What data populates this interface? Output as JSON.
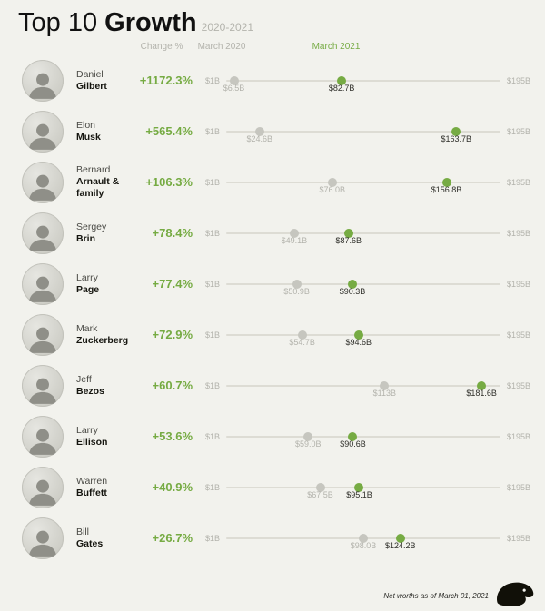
{
  "header": {
    "title_light": "Top 10 ",
    "title_bold": "Growth",
    "subtitle": "2020-2021"
  },
  "column_headers": {
    "change": "Change %",
    "start": "March 2020",
    "end": "March 2021"
  },
  "axis": {
    "min": 1,
    "max": 195,
    "min_label": "$1B",
    "max_label": "$195B"
  },
  "footer": {
    "note": "Net worths as of March 01, 2021",
    "logo": "blackbird-logo"
  },
  "colors": {
    "accent_green": "#76ab43",
    "gray_dot": "#c6c6bf",
    "muted_text": "#b3b3ac",
    "background": "#f2f2ed"
  },
  "chart_data": {
    "type": "dumbbell",
    "title": "Top 10 Growth 2020-2021",
    "x_axis": {
      "min": 1,
      "max": 195,
      "unit": "USD billions",
      "min_label": "$1B",
      "max_label": "$195B"
    },
    "series_labels": {
      "start": "March 2020",
      "end": "March 2021"
    },
    "legend_position": "top",
    "rows": [
      {
        "name_top": "Daniel",
        "name_bottom": "Gilbert",
        "change": "+1172.3%",
        "march_2020": 6.5,
        "march_2021": 82.7,
        "march_2020_label": "$6.5B",
        "march_2021_label": "$82.7B"
      },
      {
        "name_top": "Elon",
        "name_bottom": "Musk",
        "change": "+565.4%",
        "march_2020": 24.6,
        "march_2021": 163.7,
        "march_2020_label": "$24.6B",
        "march_2021_label": "$163.7B"
      },
      {
        "name_top": "Bernard",
        "name_bottom": "Arnault & family",
        "change": "+106.3%",
        "march_2020": 76.0,
        "march_2021": 156.8,
        "march_2020_label": "$76.0B",
        "march_2021_label": "$156.8B"
      },
      {
        "name_top": "Sergey",
        "name_bottom": "Brin",
        "change": "+78.4%",
        "march_2020": 49.1,
        "march_2021": 87.6,
        "march_2020_label": "$49.1B",
        "march_2021_label": "$87.6B"
      },
      {
        "name_top": "Larry",
        "name_bottom": "Page",
        "change": "+77.4%",
        "march_2020": 50.9,
        "march_2021": 90.3,
        "march_2020_label": "$50.9B",
        "march_2021_label": "$90.3B"
      },
      {
        "name_top": "Mark",
        "name_bottom": "Zuckerberg",
        "change": "+72.9%",
        "march_2020": 54.7,
        "march_2021": 94.6,
        "march_2020_label": "$54.7B",
        "march_2021_label": "$94.6B"
      },
      {
        "name_top": "Jeff",
        "name_bottom": "Bezos",
        "change": "+60.7%",
        "march_2020": 113,
        "march_2021": 181.6,
        "march_2020_label": "$113B",
        "march_2021_label": "$181.6B"
      },
      {
        "name_top": "Larry",
        "name_bottom": "Ellison",
        "change": "+53.6%",
        "march_2020": 59.0,
        "march_2021": 90.6,
        "march_2020_label": "$59.0B",
        "march_2021_label": "$90.6B"
      },
      {
        "name_top": "Warren",
        "name_bottom": "Buffett",
        "change": "+40.9%",
        "march_2020": 67.5,
        "march_2021": 95.1,
        "march_2020_label": "$67.5B",
        "march_2021_label": "$95.1B"
      },
      {
        "name_top": "Bill",
        "name_bottom": "Gates",
        "change": "+26.7%",
        "march_2020": 98.0,
        "march_2021": 124.2,
        "march_2020_label": "$98.0B",
        "march_2021_label": "$124.2B"
      }
    ]
  }
}
